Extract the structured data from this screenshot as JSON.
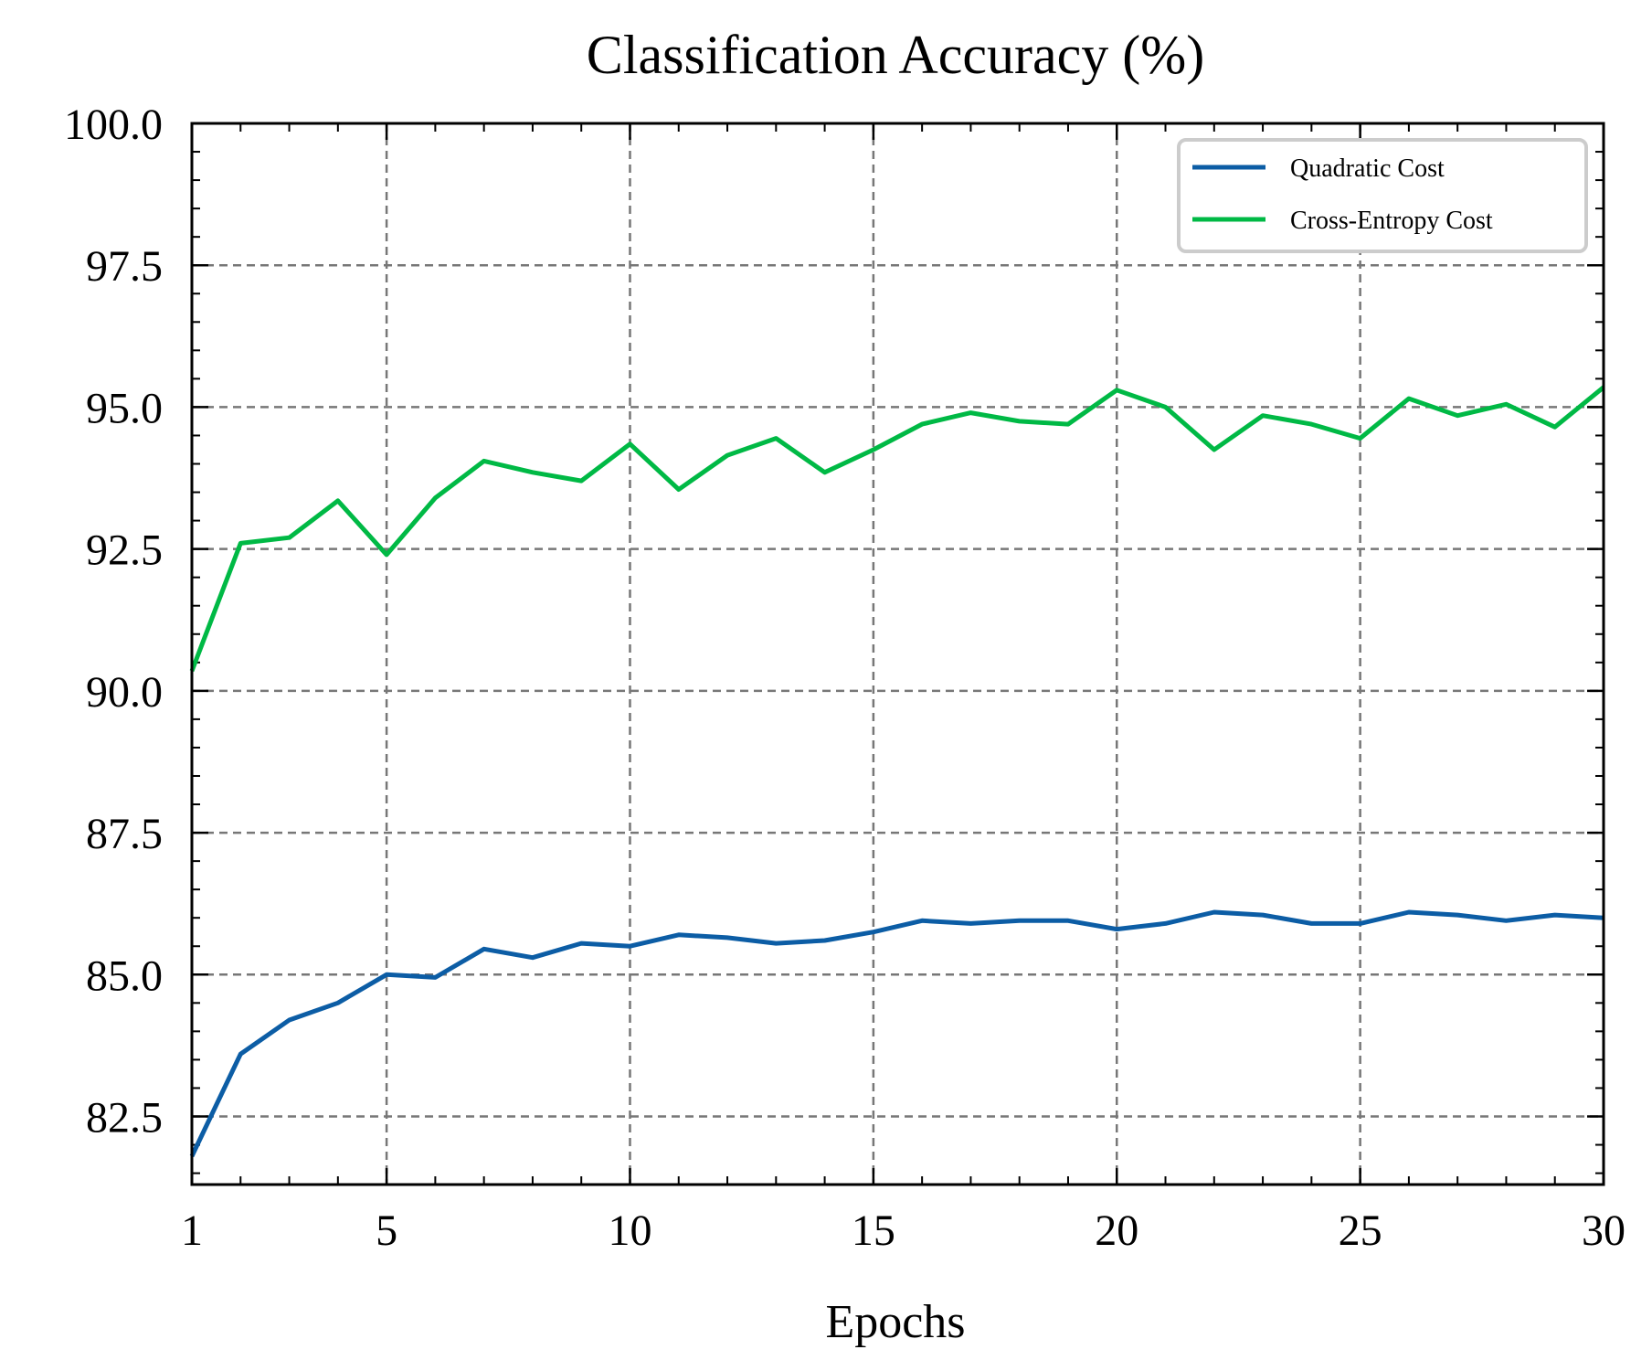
{
  "chart_data": {
    "type": "line",
    "title": "Classification Accuracy (%)",
    "xlabel": "Epochs",
    "ylabel": "",
    "xlim": [
      1,
      30
    ],
    "ylim": [
      81.3,
      100.0
    ],
    "xticks": [
      1,
      5,
      10,
      15,
      20,
      25,
      30
    ],
    "yticks": [
      82.5,
      85.0,
      87.5,
      90.0,
      92.5,
      95.0,
      97.5,
      100.0
    ],
    "grid": true,
    "legend_position": "top-right",
    "x": [
      1,
      2,
      3,
      4,
      5,
      6,
      7,
      8,
      9,
      10,
      11,
      12,
      13,
      14,
      15,
      16,
      17,
      18,
      19,
      20,
      21,
      22,
      23,
      24,
      25,
      26,
      27,
      28,
      29,
      30
    ],
    "series": [
      {
        "name": "Quadratic Cost",
        "color": "#0c5da5",
        "values": [
          81.8,
          83.6,
          84.2,
          84.5,
          85.0,
          84.95,
          85.45,
          85.3,
          85.55,
          85.5,
          85.7,
          85.65,
          85.55,
          85.6,
          85.75,
          85.95,
          85.9,
          85.95,
          85.95,
          85.8,
          85.9,
          86.1,
          86.05,
          85.9,
          85.9,
          86.1,
          86.05,
          85.95,
          86.05,
          86.0
        ]
      },
      {
        "name": "Cross-Entropy Cost",
        "color": "#00b945",
        "values": [
          90.35,
          92.6,
          92.7,
          93.35,
          92.4,
          93.4,
          94.05,
          93.85,
          93.7,
          94.35,
          93.55,
          94.15,
          94.45,
          93.85,
          94.25,
          94.7,
          94.9,
          94.75,
          94.7,
          95.3,
          95.0,
          94.25,
          94.85,
          94.7,
          94.45,
          95.15,
          94.85,
          95.05,
          94.65,
          95.35
        ]
      }
    ]
  }
}
